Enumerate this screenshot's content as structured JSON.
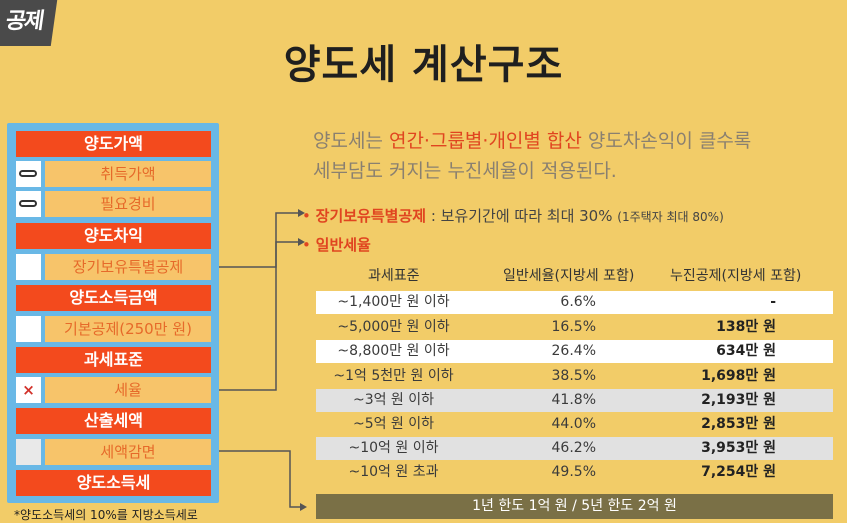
{
  "logo": {
    "text": "공제"
  },
  "title": "양도세 계산구조",
  "flow": {
    "header1": "양도가액",
    "item_acq": "취득가액",
    "item_exp": "필요경비",
    "header2": "양도차익",
    "item_ltsd": "장기보유특별공제",
    "header3": "양도소득금액",
    "item_basic": "기본공제(250만 원)",
    "header4": "과세표준",
    "item_rate_mark": "×",
    "item_rate": "세율",
    "header5": "산출세액",
    "item_reduce": "세액감면",
    "header6": "양도소득세"
  },
  "footnote": "*양도소득세의 10%를 지방소득세로",
  "description": {
    "part1": "양도세는 ",
    "highlight": "연간·그룹별·개인별 합산",
    "part2": " 양도차손익이 클수록",
    "line2": "세부담도 커지는 누진세율이 적용된다."
  },
  "bullets": {
    "dot": "•",
    "b1_label": "장기보유특별공제",
    "b1_text": " : 보유기간에 따라 최대 30%",
    "b1_note": "(1주택자 최대 80%)",
    "b2_label": "일반세율"
  },
  "table": {
    "headers": [
      "과세표준",
      "일반세율(지방세 포함)",
      "누진공제(지방세 포함)"
    ],
    "rows": [
      [
        "~1,400만 원 이하",
        "6.6%",
        "-"
      ],
      [
        "~5,000만 원 이하",
        "16.5%",
        "138만 원"
      ],
      [
        "~8,800만 원 이하",
        "26.4%",
        "634만 원"
      ],
      [
        "~1억 5천만 원 이하",
        "38.5%",
        "1,698만 원"
      ],
      [
        "~3억 원 이하",
        "41.8%",
        "2,193만 원"
      ],
      [
        "~5억 원 이하",
        "44.0%",
        "2,853만 원"
      ],
      [
        "~10억 원 이하",
        "46.2%",
        "3,953만 원"
      ],
      [
        "~10억 원 초과",
        "49.5%",
        "7,254만 원"
      ]
    ]
  },
  "bottom_bar": "1년 한도 1억 원 / 5년 한도 2억 원"
}
